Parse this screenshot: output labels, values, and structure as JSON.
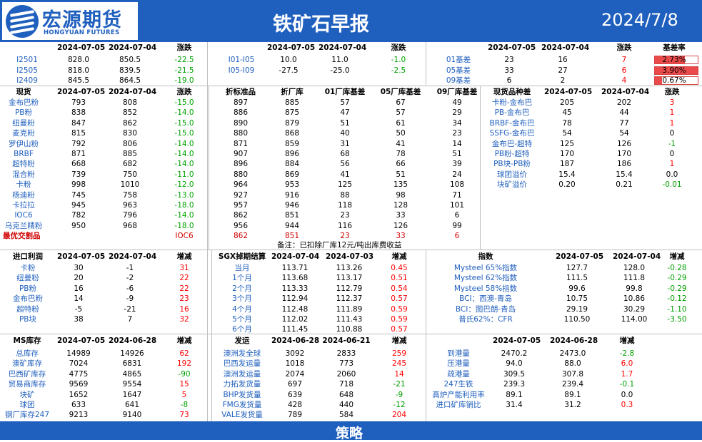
{
  "header": {
    "logo_cn": "宏源期货",
    "logo_en": "HONGYUAN FUTURES",
    "title": "铁矿石早报",
    "date": "2024/7/8"
  },
  "footer": {
    "label": "策略"
  },
  "colors": {
    "header_blue": "#1f5fbe",
    "up_red": "#ff0000",
    "down_green": "#00a000",
    "label_blue": "#1f5fbe"
  },
  "futures": {
    "headers": [
      "",
      "2024-07-05",
      "2024-07-04",
      "涨跌"
    ],
    "rows": [
      [
        "I2501",
        "828.0",
        "850.5",
        "-22.5"
      ],
      [
        "I2505",
        "818.0",
        "839.5",
        "-21.5"
      ],
      [
        "I2409",
        "845.5",
        "864.5",
        "-19.0"
      ]
    ]
  },
  "spreads": {
    "headers": [
      "",
      "2024-07-05",
      "2024-07-04",
      "涨跌"
    ],
    "rows": [
      [
        "I01-I05",
        "10.0",
        "11.0",
        "-1.0"
      ],
      [
        "I05-I09",
        "-27.5",
        "-25.0",
        "-2.5"
      ]
    ]
  },
  "basis": {
    "headers": [
      "",
      "2024-07-05",
      "2024-07-04",
      "涨跌",
      "基差率"
    ],
    "rows": [
      [
        "01基差",
        "23",
        "16",
        "7",
        "2.73%"
      ],
      [
        "05基差",
        "33",
        "27",
        "6",
        "3.90%"
      ],
      [
        "09基差",
        "6",
        "2",
        "4",
        "0.67%"
      ]
    ],
    "rate_values": [
      2.73,
      3.9,
      0.67
    ]
  },
  "spot": {
    "headers": [
      "现货",
      "2024-07-05",
      "2024-07-04",
      "涨跌"
    ],
    "rows": [
      [
        "金布巴粉",
        "793",
        "808",
        "-15.0"
      ],
      [
        "PB粉",
        "838",
        "852",
        "-14.0"
      ],
      [
        "纽曼粉",
        "847",
        "862",
        "-15.0"
      ],
      [
        "麦克粉",
        "815",
        "830",
        "-15.0"
      ],
      [
        "罗伊山粉",
        "792",
        "806",
        "-14.0"
      ],
      [
        "BRBF",
        "871",
        "885",
        "-14.0"
      ],
      [
        "超特粉",
        "668",
        "682",
        "-14.0"
      ],
      [
        "混合粉",
        "739",
        "750",
        "-11.0"
      ],
      [
        "卡粉",
        "998",
        "1010",
        "-12.0"
      ],
      [
        "杨迪粉",
        "745",
        "758",
        "-13.0"
      ],
      [
        "卡拉拉",
        "945",
        "963",
        "-18.0"
      ],
      [
        "IOC6",
        "782",
        "796",
        "-14.0"
      ],
      [
        "乌克兰精粉",
        "950",
        "968",
        "-18.0"
      ]
    ],
    "best_label": "最优交割品",
    "best_value": "IOC6"
  },
  "delivery": {
    "headers": [
      "折标准品",
      "折厂库",
      "01厂库基差",
      "05厂库基差",
      "09厂库基差"
    ],
    "rows": [
      [
        "897",
        "885",
        "57",
        "67",
        "49"
      ],
      [
        "886",
        "875",
        "47",
        "57",
        "29"
      ],
      [
        "890",
        "879",
        "51",
        "61",
        "34"
      ],
      [
        "880",
        "868",
        "40",
        "50",
        "23"
      ],
      [
        "871",
        "859",
        "31",
        "41",
        "14"
      ],
      [
        "907",
        "896",
        "68",
        "78",
        "51"
      ],
      [
        "896",
        "884",
        "56",
        "66",
        "39"
      ],
      [
        "880",
        "869",
        "41",
        "51",
        "24"
      ],
      [
        "964",
        "953",
        "125",
        "135",
        "108"
      ],
      [
        "927",
        "916",
        "88",
        "98",
        "71"
      ],
      [
        "957",
        "946",
        "118",
        "128",
        "101"
      ],
      [
        "862",
        "851",
        "23",
        "33",
        "6"
      ],
      [
        "956",
        "944",
        "116",
        "126",
        "99"
      ]
    ],
    "best_row": [
      "862",
      "851",
      "23",
      "33",
      "6"
    ],
    "note": "备注：已扣除厂库12元/吨出库费收益"
  },
  "spot_spread": {
    "headers": [
      "现货品种差",
      "2024-07-05",
      "2024-07-04",
      "涨跌"
    ],
    "rows": [
      [
        "卡粉-金布巴",
        "205",
        "202",
        "3"
      ],
      [
        "PB-金布巴",
        "45",
        "44",
        "1"
      ],
      [
        "BRBF-金布巴",
        "78",
        "77",
        "1"
      ],
      [
        "SSFG-金布巴",
        "54",
        "54",
        "0"
      ],
      [
        "金布巴-超特",
        "125",
        "126",
        "-1"
      ],
      [
        "PB粉-超特",
        "170",
        "170",
        "0"
      ],
      [
        "PB块-PB粉",
        "187",
        "186",
        "1"
      ],
      [
        "球团溢价",
        "15.4",
        "15.4",
        "0.0"
      ],
      [
        "块矿溢价",
        "0.20",
        "0.21",
        "-0.01"
      ]
    ]
  },
  "import_profit": {
    "headers": [
      "进口利润",
      "2024-07-05",
      "2024-07-04",
      "增减"
    ],
    "rows": [
      [
        "卡粉",
        "30",
        "-1",
        "31"
      ],
      [
        "纽曼粉",
        "20",
        "-2",
        "22"
      ],
      [
        "PB粉",
        "16",
        "-6",
        "22"
      ],
      [
        "金布巴粉",
        "14",
        "-9",
        "23"
      ],
      [
        "超特粉",
        "-5",
        "-21",
        "16"
      ],
      [
        "PB块",
        "38",
        "7",
        "32"
      ]
    ]
  },
  "sgx": {
    "headers": [
      "SGX掉期结算",
      "2024-07-04",
      "2024-07-03",
      "增减"
    ],
    "rows": [
      [
        "当月",
        "113.71",
        "113.26",
        "0.45"
      ],
      [
        "1个月",
        "113.68",
        "113.17",
        "0.51"
      ],
      [
        "2个月",
        "113.33",
        "112.79",
        "0.54"
      ],
      [
        "3个月",
        "112.94",
        "112.37",
        "0.57"
      ],
      [
        "4个月",
        "112.48",
        "111.89",
        "0.59"
      ],
      [
        "5个月",
        "112.02",
        "111.43",
        "0.59"
      ],
      [
        "6个月",
        "111.45",
        "110.88",
        "0.57"
      ]
    ]
  },
  "indices": {
    "headers": [
      "指数",
      "2024-07-05",
      "2024-07-04",
      "增减"
    ],
    "rows": [
      [
        "Mysteel 65%指数",
        "127.7",
        "128.0",
        "-0.28"
      ],
      [
        "Mysteel 62%指数",
        "111.5",
        "111.8",
        "-0.29"
      ],
      [
        "Mysteel 58%指数",
        "99.6",
        "99.8",
        "-0.29"
      ],
      [
        "BCI：西澳-青岛",
        "10.75",
        "10.86",
        "-0.12"
      ],
      [
        "BCI：图巴朗-青岛",
        "29.19",
        "30.29",
        "-1.10"
      ],
      [
        "普氏62%：CFR",
        "110.50",
        "114.00",
        "-3.50"
      ]
    ]
  },
  "ms_inventory": {
    "headers": [
      "MS库存",
      "2024-07-05",
      "2024-06-28",
      "增减"
    ],
    "rows": [
      [
        "总库存",
        "14989",
        "14926",
        "62"
      ],
      [
        "澳矿库存",
        "7024",
        "6831",
        "192"
      ],
      [
        "巴西矿库存",
        "4775",
        "4865",
        "-90"
      ],
      [
        "贸易商库存",
        "9569",
        "9554",
        "15"
      ],
      [
        "块矿",
        "1652",
        "1647",
        "5"
      ],
      [
        "球团",
        "633",
        "641",
        "-8"
      ],
      [
        "钢厂库存247",
        "9213",
        "9140",
        "73"
      ]
    ]
  },
  "shipping": {
    "headers": [
      "发运",
      "2024-06-28",
      "2024-06-21",
      "增减"
    ],
    "rows": [
      [
        "澳洲发全球",
        "3092",
        "2833",
        "259"
      ],
      [
        "巴西发运量",
        "1018",
        "773",
        "245"
      ],
      [
        "澳洲发运量",
        "2074",
        "2060",
        "14"
      ],
      [
        "力拓发货量",
        "697",
        "718",
        "-21"
      ],
      [
        "BHP发货量",
        "639",
        "648",
        "-9"
      ],
      [
        "FMG发货量",
        "428",
        "440",
        "-12"
      ],
      [
        "VALE发货量",
        "789",
        "584",
        "204"
      ]
    ]
  },
  "ports": {
    "headers": [
      "",
      "2024-07-05",
      "2024-06-28",
      "增减"
    ],
    "rows": [
      [
        "到港量",
        "2470.2",
        "2473.0",
        "-2.8"
      ],
      [
        "压港量",
        "94.0",
        "88.0",
        "6.0"
      ],
      [
        "疏港量",
        "309.5",
        "307.8",
        "1.7"
      ],
      [
        "247生铁",
        "239.3",
        "239.4",
        "-0.1"
      ],
      [
        "高炉产能利用率",
        "89.1",
        "89.1",
        "0.0"
      ],
      [
        "进口矿库销比",
        "31.4",
        "31.2",
        "0.3"
      ]
    ]
  }
}
